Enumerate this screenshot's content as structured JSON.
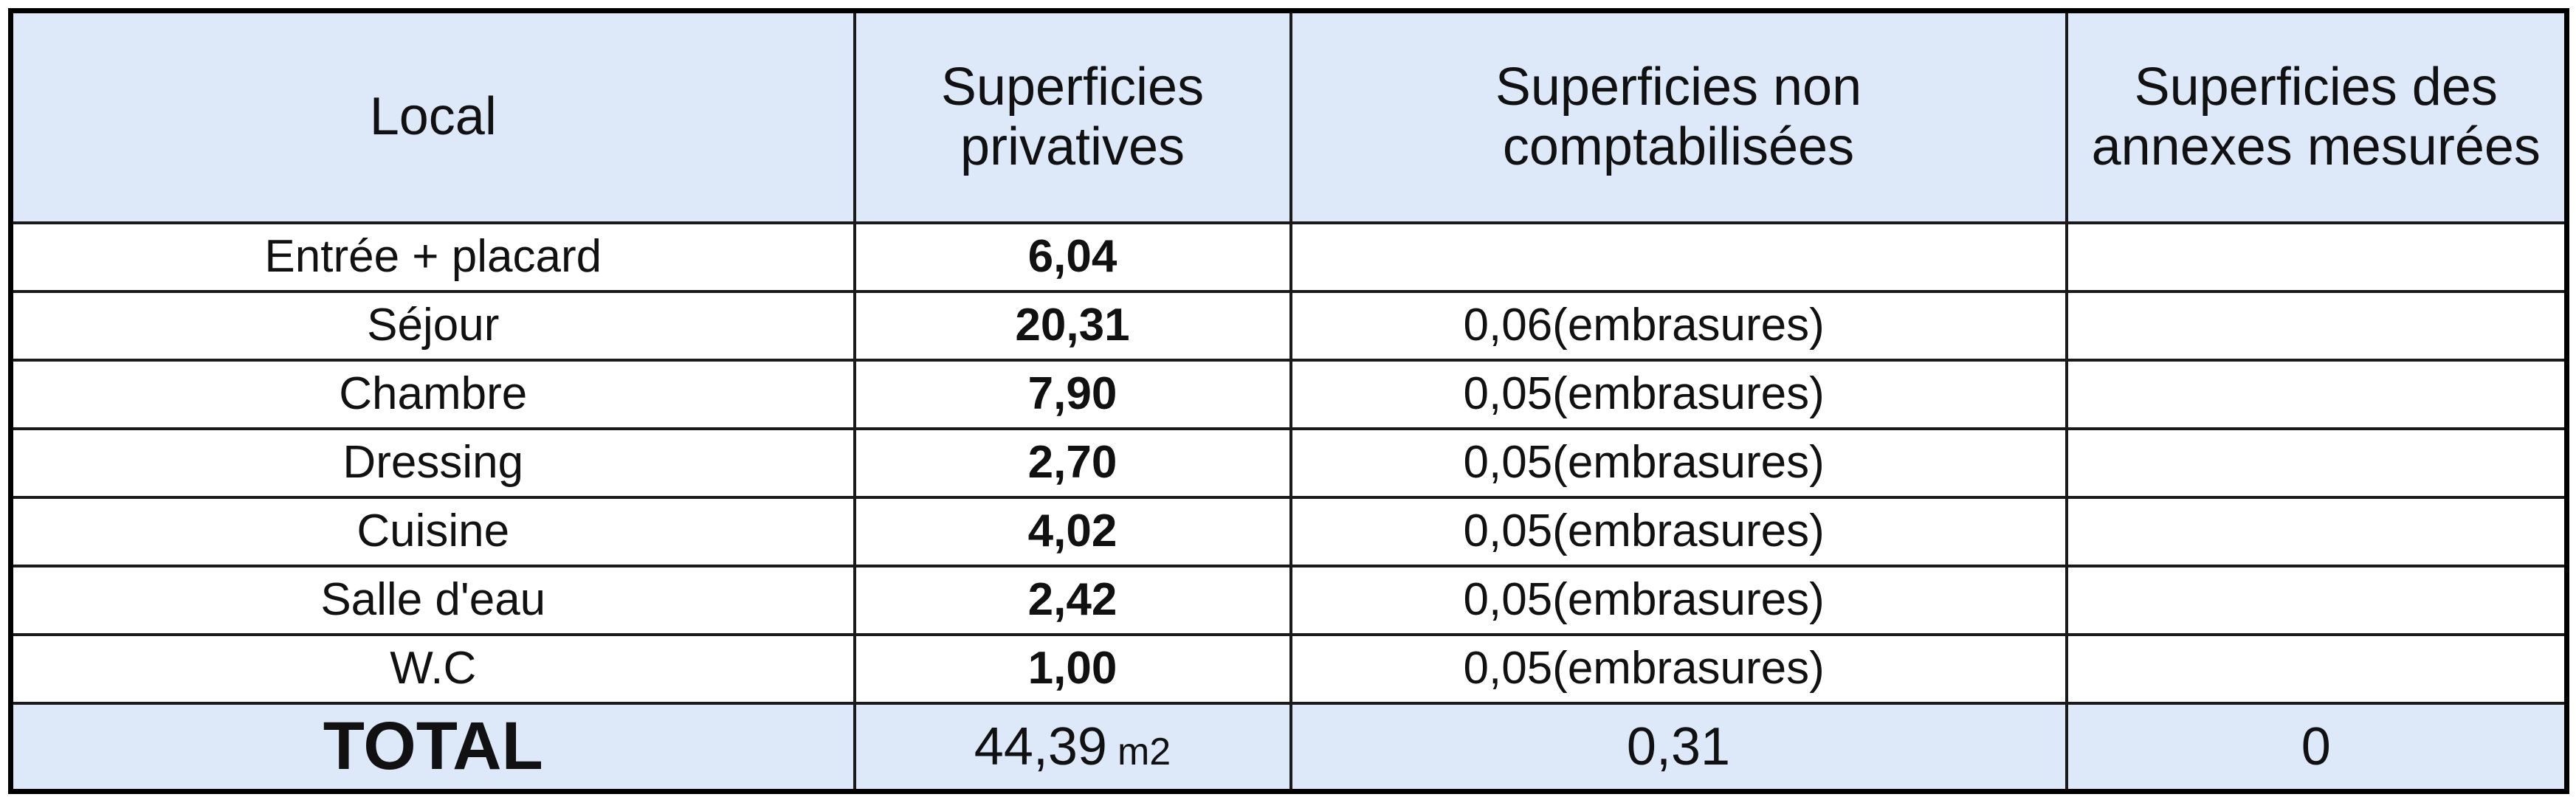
{
  "table": {
    "headers": [
      "Local",
      "Superficies privatives",
      "Superficies non comptabilisées",
      "Superficies des annexes mesurées"
    ],
    "rows": [
      {
        "local": "Entrée + placard",
        "privative": "6,04"
      },
      {
        "local": "Séjour",
        "privative": "20,31",
        "non_comptabilisee": "0,06(embrasures)"
      },
      {
        "local": "Chambre",
        "privative": "7,90",
        "non_comptabilisee": "0,05(embrasures)"
      },
      {
        "local": "Dressing",
        "privative": "2,70",
        "non_comptabilisee": "0,05(embrasures)"
      },
      {
        "local": "Cuisine",
        "privative": "4,02",
        "non_comptabilisee": "0,05(embrasures)"
      },
      {
        "local": "Salle d'eau",
        "privative": "2,42",
        "non_comptabilisee": "0,05(embrasures)"
      },
      {
        "local": "W.C",
        "privative": "1,00",
        "non_comptabilisee": "0,05(embrasures)"
      }
    ],
    "total": {
      "label": "TOTAL",
      "privative": "44,39",
      "unit": "m2",
      "non_comptabilisee": "0,31",
      "annexes": "0"
    }
  }
}
